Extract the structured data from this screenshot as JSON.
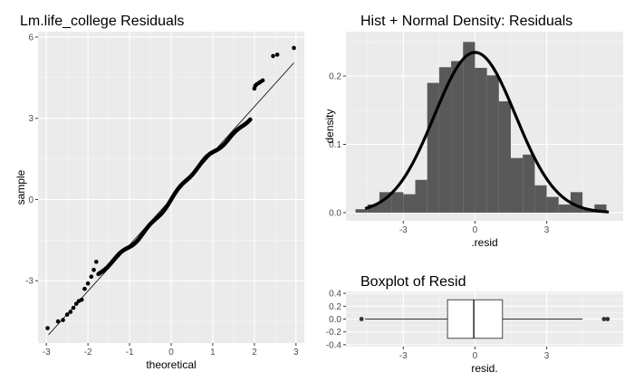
{
  "colors": {
    "panel_bg": "#ebebeb",
    "grid_major": "#ffffff",
    "grid_minor": "#f5f5f5",
    "bar_fill": "#595959",
    "ink": "#000000",
    "tick_text": "#4d4d4d"
  },
  "chart_data": [
    {
      "type": "scatter",
      "title": "Lm.life_college Residuals",
      "xlabel": "theoretical",
      "ylabel": "sample",
      "xlim": [
        -3.2,
        3.2
      ],
      "ylim": [
        -5.3,
        6.2
      ],
      "xticks": [
        -3,
        -2,
        -1,
        0,
        1,
        2,
        3
      ],
      "yticks": [
        -3,
        0,
        3,
        6
      ],
      "grid": true,
      "reference_line": {
        "x": [
          -2.95,
          2.95
        ],
        "y": [
          -5.0,
          5.05
        ]
      },
      "points_core": {
        "n": 220,
        "xmin": -1.75,
        "xmax": 1.9,
        "slope": 1.66,
        "intercept": 0.0
      },
      "points_tail": {
        "x": [
          -2.97,
          -2.72,
          -2.6,
          -2.5,
          -2.42,
          -2.35,
          -2.28,
          -2.22,
          -2.15,
          -2.08,
          -2.0,
          -1.92,
          -1.86,
          -1.8,
          2.0,
          2.02,
          2.05,
          2.1,
          2.15,
          2.2,
          2.45,
          2.55,
          2.95
        ],
        "y": [
          -4.75,
          -4.5,
          -4.45,
          -4.25,
          -4.15,
          -4.0,
          -3.85,
          -3.75,
          -3.7,
          -3.3,
          -3.1,
          -2.85,
          -2.6,
          -2.3,
          4.1,
          4.2,
          4.25,
          4.3,
          4.35,
          4.4,
          5.3,
          5.35,
          5.6
        ]
      }
    },
    {
      "type": "bar",
      "title": "Hist + Normal Density: Residuals",
      "xlabel": ".resid",
      "ylabel": "density",
      "xlim": [
        -5.4,
        6.2
      ],
      "ylim": [
        -0.012,
        0.265
      ],
      "xticks": [
        -3,
        0,
        3
      ],
      "yticks": [
        0.0,
        0.1,
        0.2
      ],
      "ytick_labels": [
        "0.0",
        "0.1",
        "0.2"
      ],
      "grid": true,
      "bin_width": 0.5,
      "bin_starts": [
        -5.0,
        -4.5,
        -4.0,
        -3.5,
        -3.0,
        -2.5,
        -2.0,
        -1.5,
        -1.0,
        -0.5,
        0.0,
        0.5,
        1.0,
        1.5,
        2.0,
        2.5,
        3.0,
        3.5,
        4.0,
        4.5,
        5.0
      ],
      "values": [
        0.005,
        0.012,
        0.03,
        0.03,
        0.027,
        0.048,
        0.19,
        0.213,
        0.222,
        0.25,
        0.212,
        0.201,
        0.163,
        0.08,
        0.085,
        0.04,
        0.023,
        0.012,
        0.03,
        0.005,
        0.012
      ],
      "density_curve": {
        "mean": 0.0,
        "sd": 1.7,
        "x_from": -4.6,
        "x_to": 5.6
      }
    },
    {
      "type": "box",
      "title": "Boxplot of Resid",
      "xlabel": "resid.",
      "ylabel": "",
      "xlim": [
        -5.4,
        6.2
      ],
      "ylim": [
        -0.43,
        0.43
      ],
      "xticks": [
        -3,
        0,
        3
      ],
      "yticks": [
        -0.4,
        -0.2,
        0.0,
        0.2,
        0.4
      ],
      "ytick_labels": [
        "-0.4",
        "-0.2",
        "0.0",
        "0.2",
        "0.4"
      ],
      "grid": true,
      "whisker_low": -4.6,
      "q1": -1.15,
      "median": -0.05,
      "q3": 1.15,
      "whisker_high": 4.5,
      "outliers": [
        -4.75,
        5.4,
        5.55
      ],
      "box_halfheight": 0.3
    }
  ]
}
